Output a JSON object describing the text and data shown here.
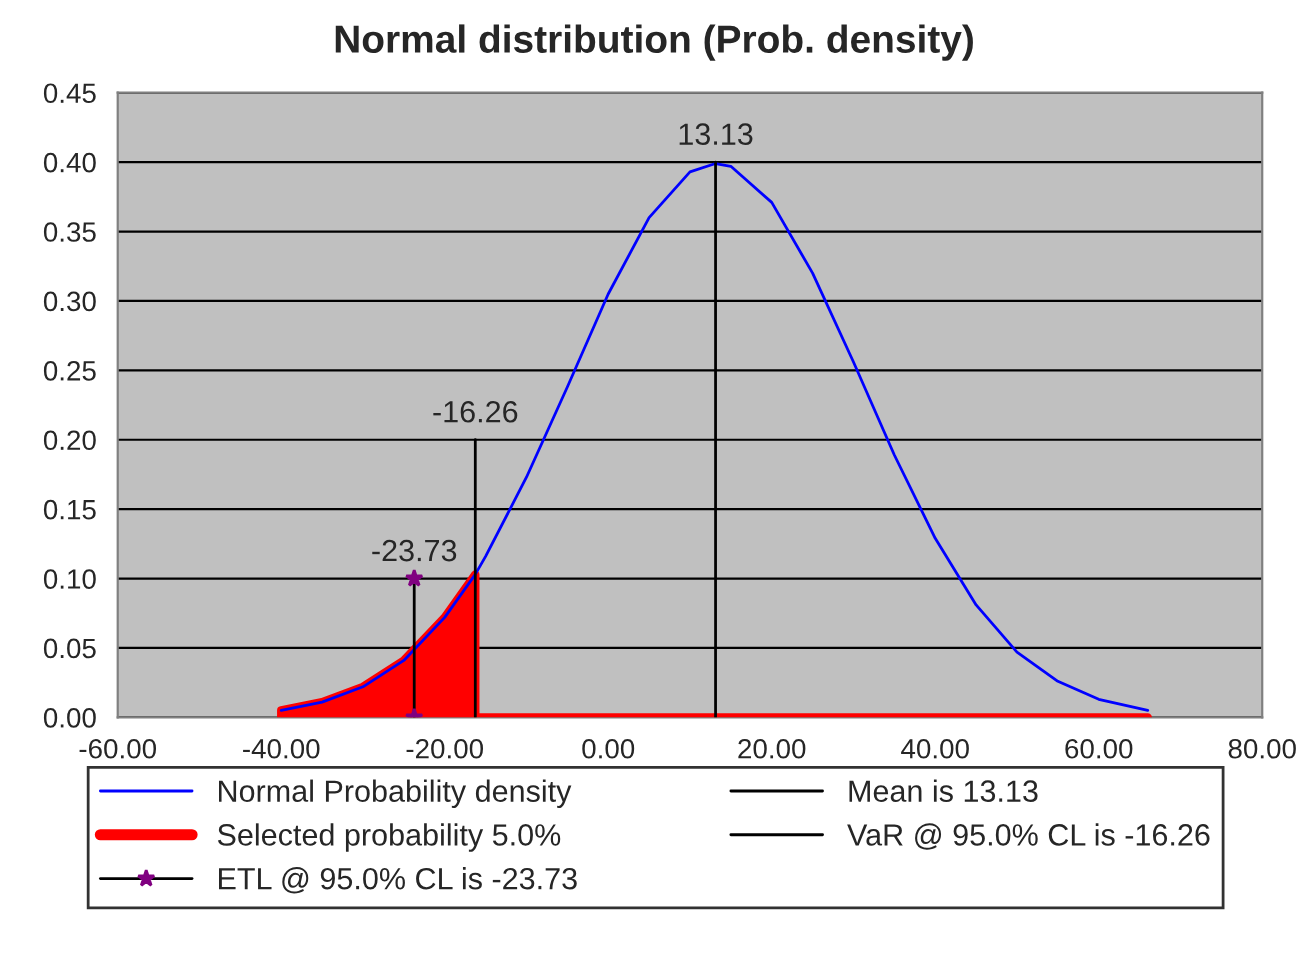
{
  "chart_data": {
    "type": "line",
    "title": "Normal distribution (Prob. density)",
    "series": [
      {
        "name": "Normal Probability density",
        "color": "#0000ff",
        "x": [
          -40,
          -35,
          -30,
          -25,
          -20,
          -16.26,
          -15,
          -10,
          -5,
          0,
          5,
          10,
          13.13,
          15,
          20,
          25,
          30,
          35,
          40,
          45,
          50,
          55,
          60,
          66
        ],
        "values": [
          0.005,
          0.011,
          0.022,
          0.041,
          0.072,
          0.103,
          0.116,
          0.173,
          0.238,
          0.305,
          0.36,
          0.393,
          0.399,
          0.397,
          0.371,
          0.32,
          0.256,
          0.189,
          0.129,
          0.081,
          0.047,
          0.026,
          0.013,
          0.005
        ]
      },
      {
        "name": "Selected probability 5.0%",
        "type": "area",
        "color": "#ff0000",
        "x": [
          -40,
          -35,
          -30,
          -25,
          -20,
          -16.26,
          -16.26,
          66
        ],
        "values": [
          0.005,
          0.011,
          0.022,
          0.041,
          0.072,
          0.103,
          0,
          0
        ]
      },
      {
        "name": "ETL @ 95.0% CL is -23.73",
        "type": "line",
        "color": "#000000",
        "marker": "star",
        "x": [
          -23.73,
          -23.73
        ],
        "values": [
          0,
          0.1
        ]
      },
      {
        "name": "Mean is 13.13",
        "type": "line",
        "color": "#000000",
        "x": [
          13.13,
          13.13
        ],
        "values": [
          0,
          0.4
        ]
      },
      {
        "name": "VaR @ 95.0% CL is -16.26",
        "type": "line",
        "color": "#000000",
        "x": [
          -16.26,
          -16.26
        ],
        "values": [
          0,
          0.2
        ]
      }
    ],
    "annotations": [
      {
        "text": "13.13",
        "x": 13.13,
        "y": 0.4
      },
      {
        "text": "-16.26",
        "x": -16.26,
        "y": 0.2
      },
      {
        "text": "-23.73",
        "x": -23.73,
        "y": 0.1
      }
    ],
    "xlim": [
      -60,
      80
    ],
    "xticks": [
      {
        "value": -60,
        "label": "-60.00"
      },
      {
        "value": -40,
        "label": "-40.00"
      },
      {
        "value": -20,
        "label": "-20.00"
      },
      {
        "value": 0,
        "label": "0.00"
      },
      {
        "value": 20,
        "label": "20.00"
      },
      {
        "value": 40,
        "label": "40.00"
      },
      {
        "value": 60,
        "label": "60.00"
      },
      {
        "value": 80,
        "label": "80.00"
      }
    ],
    "ylim": [
      0,
      0.45
    ],
    "yticks": [
      {
        "value": 0,
        "label": "0.00"
      },
      {
        "value": 0.05,
        "label": "0.05"
      },
      {
        "value": 0.1,
        "label": "0.10"
      },
      {
        "value": 0.15,
        "label": "0.15"
      },
      {
        "value": 0.2,
        "label": "0.20"
      },
      {
        "value": 0.25,
        "label": "0.25"
      },
      {
        "value": 0.3,
        "label": "0.30"
      },
      {
        "value": 0.35,
        "label": "0.35"
      },
      {
        "value": 0.4,
        "label": "0.40"
      },
      {
        "value": 0.45,
        "label": "0.45"
      }
    ],
    "grid": "y",
    "legend": "bottom"
  }
}
